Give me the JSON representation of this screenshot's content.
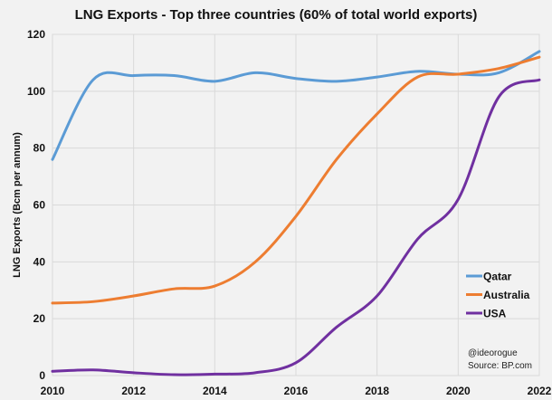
{
  "chart_data": {
    "type": "line",
    "title": "LNG Exports - Top three countries (60% of total world exports)",
    "xlabel": "",
    "ylabel": "LNG Exports (Bcm per annum)",
    "xlim": [
      2010,
      2022
    ],
    "ylim": [
      0,
      120
    ],
    "x_ticks": [
      "2010",
      "2012",
      "2014",
      "2016",
      "2018",
      "2020",
      "2022"
    ],
    "y_ticks": [
      "0",
      "20",
      "40",
      "60",
      "80",
      "100",
      "120"
    ],
    "grid": true,
    "smooth": true,
    "legend_position": "right",
    "x": [
      2010,
      2011,
      2012,
      2013,
      2014,
      2015,
      2016,
      2017,
      2018,
      2019,
      2020,
      2021,
      2022
    ],
    "series": [
      {
        "name": "Qatar",
        "color": "#5b9bd5",
        "values": [
          76,
          104,
          105.5,
          105.5,
          103.5,
          106.5,
          104.5,
          103.5,
          105,
          107,
          106,
          106.5,
          114
        ]
      },
      {
        "name": "Australia",
        "color": "#ed7d31",
        "values": [
          25.5,
          26,
          28,
          30.5,
          31.5,
          40,
          56,
          76,
          92,
          105,
          106,
          108,
          112
        ]
      },
      {
        "name": "USA",
        "color": "#7030a0",
        "values": [
          1.5,
          2,
          1,
          0.3,
          0.5,
          1,
          4.5,
          17,
          28,
          48,
          62,
          98,
          104
        ]
      }
    ],
    "annotations": [
      "@ideorogue",
      "Source: BP.com"
    ]
  }
}
